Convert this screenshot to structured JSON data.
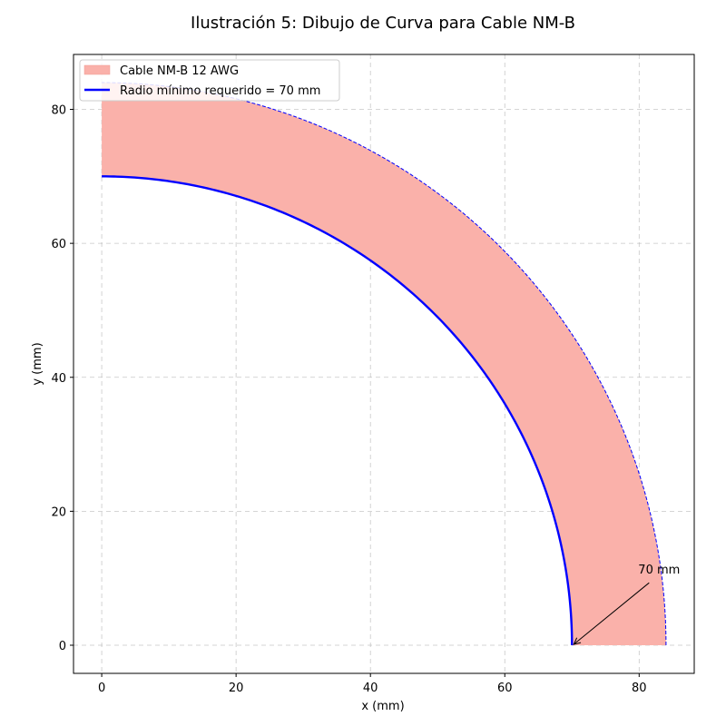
{
  "chart_data": {
    "type": "area",
    "title": "Ilustración 5: Dibujo de Curva para Cable NM-B",
    "xlabel": "x (mm)",
    "ylabel": "y (mm)",
    "xlim": [
      -4.2,
      88.2
    ],
    "ylim": [
      -4.2,
      88.2
    ],
    "xticks": [
      0,
      20,
      40,
      60,
      80
    ],
    "yticks": [
      0,
      20,
      40,
      60,
      80
    ],
    "grid": true,
    "legend_position": "top-left",
    "series": [
      {
        "name": "Cable NM-B 12 AWG",
        "kind": "band",
        "inner_radius": 70,
        "outer_radius": 84,
        "angle_range_deg": [
          0,
          90
        ],
        "color": "#fab1aa"
      },
      {
        "name": "Radio mínimo requerido = 70 mm",
        "kind": "arc",
        "radius": 70,
        "angle_range_deg": [
          0,
          90
        ],
        "color": "#0000ff"
      },
      {
        "kind": "arc-dashed",
        "radius": 84,
        "angle_range_deg": [
          0,
          90
        ],
        "color": "#0000ff"
      }
    ],
    "annotations": [
      {
        "text": "70 mm",
        "text_at": [
          80,
          10
        ],
        "arrow_to": [
          70,
          0
        ]
      }
    ]
  }
}
